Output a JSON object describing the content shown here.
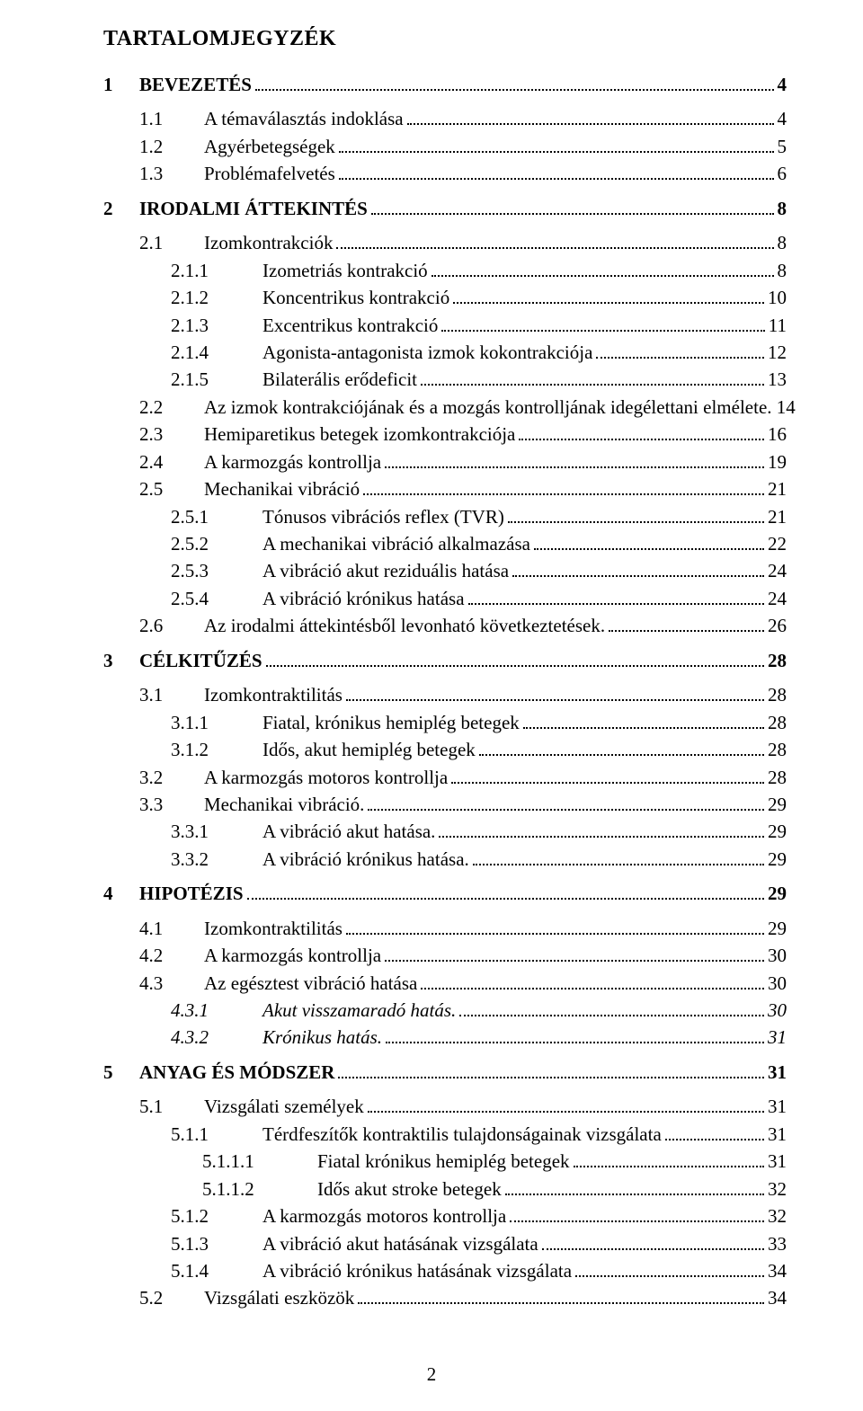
{
  "document": {
    "title": "TARTALOMJEGYZÉK",
    "page_number": "2",
    "font_family": "Times New Roman",
    "text_color": "#000000",
    "background_color": "#ffffff",
    "leader_style": "dotted",
    "entries": [
      {
        "level": "chap",
        "num": "1",
        "label": "BEVEZETÉS",
        "page": "4",
        "bold": true
      },
      {
        "level": "sec",
        "num": "1.1",
        "label": "A témaválasztás indoklása",
        "page": "4"
      },
      {
        "level": "sec",
        "num": "1.2",
        "label": "Agyérbetegségek",
        "page": "5"
      },
      {
        "level": "sec",
        "num": "1.3",
        "label": "Problémafelvetés",
        "page": "6"
      },
      {
        "level": "chap",
        "num": "2",
        "label": "IRODALMI ÁTTEKINTÉS",
        "page": "8",
        "bold": true
      },
      {
        "level": "sec",
        "num": "2.1",
        "label": "Izomkontrakciók",
        "page": "8"
      },
      {
        "level": "subsec",
        "num": "2.1.1",
        "label": "Izometriás kontrakció",
        "page": "8"
      },
      {
        "level": "subsec",
        "num": "2.1.2",
        "label": "Koncentrikus kontrakció",
        "page": "10"
      },
      {
        "level": "subsec",
        "num": "2.1.3",
        "label": "Excentrikus kontrakció",
        "page": "11"
      },
      {
        "level": "subsec",
        "num": "2.1.4",
        "label": "Agonista-antagonista izmok kokontrakciója",
        "page": "12"
      },
      {
        "level": "subsec",
        "num": "2.1.5",
        "label": "Bilaterális erődeficit",
        "page": "13"
      },
      {
        "level": "sec",
        "num": "2.2",
        "label": "Az izmok kontrakciójának és a mozgás kontrolljának idegélettani elmélete.",
        "page": "14",
        "nolead": true
      },
      {
        "level": "sec",
        "num": "2.3",
        "label": "Hemiparetikus betegek izomkontrakciója",
        "page": "16"
      },
      {
        "level": "sec",
        "num": "2.4",
        "label": "A karmozgás kontrollja",
        "page": "19"
      },
      {
        "level": "sec",
        "num": "2.5",
        "label": "Mechanikai vibráció",
        "page": "21"
      },
      {
        "level": "subsec",
        "num": "2.5.1",
        "label": "Tónusos vibrációs reflex (TVR)",
        "page": "21"
      },
      {
        "level": "subsec",
        "num": "2.5.2",
        "label": "A mechanikai vibráció alkalmazása",
        "page": "22"
      },
      {
        "level": "subsec",
        "num": "2.5.3",
        "label": "A vibráció akut reziduális hatása",
        "page": "24"
      },
      {
        "level": "subsec",
        "num": "2.5.4",
        "label": "A vibráció krónikus hatása",
        "page": "24"
      },
      {
        "level": "sec",
        "num": "2.6",
        "label": "Az irodalmi áttekintésből levonható következtetések.",
        "page": "26"
      },
      {
        "level": "chap",
        "num": "3",
        "label": "CÉLKITŰZÉS",
        "page": "28",
        "bold": true
      },
      {
        "level": "sec",
        "num": "3.1",
        "label": "Izomkontraktilitás",
        "page": "28"
      },
      {
        "level": "subsec",
        "num": "3.1.1",
        "label": "Fiatal, krónikus hemiplég betegek",
        "page": "28"
      },
      {
        "level": "subsec",
        "num": "3.1.2",
        "label": "Idős, akut hemiplég betegek",
        "page": "28"
      },
      {
        "level": "sec",
        "num": "3.2",
        "label": "A karmozgás motoros kontrollja",
        "page": "28"
      },
      {
        "level": "sec",
        "num": "3.3",
        "label": "Mechanikai vibráció.",
        "page": "29"
      },
      {
        "level": "subsec",
        "num": "3.3.1",
        "label": "A vibráció akut hatása.",
        "page": "29"
      },
      {
        "level": "subsec",
        "num": "3.3.2",
        "label": "A vibráció krónikus hatása.",
        "page": "29"
      },
      {
        "level": "chap",
        "num": "4",
        "label": "HIPOTÉZIS",
        "page": "29",
        "bold": true
      },
      {
        "level": "sec",
        "num": "4.1",
        "label": "Izomkontraktilitás",
        "page": "29"
      },
      {
        "level": "sec",
        "num": "4.2",
        "label": "A karmozgás kontrollja",
        "page": "30"
      },
      {
        "level": "sec",
        "num": "4.3",
        "label": "Az egésztest vibráció hatása",
        "page": "30"
      },
      {
        "level": "subsec",
        "num": "4.3.1",
        "label": "Akut visszamaradó hatás.",
        "page": "30",
        "italic": true
      },
      {
        "level": "subsec",
        "num": "4.3.2",
        "label": "Krónikus hatás.",
        "page": "31",
        "italic": true
      },
      {
        "level": "chap",
        "num": "5",
        "label": "ANYAG ÉS MÓDSZER",
        "page": "31",
        "bold": true
      },
      {
        "level": "sec",
        "num": "5.1",
        "label": "Vizsgálati személyek",
        "page": "31"
      },
      {
        "level": "subsec",
        "num": "5.1.1",
        "label": "Térdfeszítők kontraktilis tulajdonságainak vizsgálata",
        "page": "31"
      },
      {
        "level": "subsubsec",
        "num": "5.1.1.1",
        "label": "Fiatal krónikus hemiplég betegek",
        "page": "31"
      },
      {
        "level": "subsubsec",
        "num": "5.1.1.2",
        "label": "Idős akut stroke betegek",
        "page": "32"
      },
      {
        "level": "subsec",
        "num": "5.1.2",
        "label": "A karmozgás motoros kontrollja",
        "page": "32"
      },
      {
        "level": "subsec",
        "num": "5.1.3",
        "label": "A vibráció akut hatásának vizsgálata",
        "page": "33"
      },
      {
        "level": "subsec",
        "num": "5.1.4",
        "label": "A vibráció krónikus hatásának vizsgálata",
        "page": "34"
      },
      {
        "level": "sec",
        "num": "5.2",
        "label": "Vizsgálati eszközök",
        "page": "34"
      }
    ]
  }
}
